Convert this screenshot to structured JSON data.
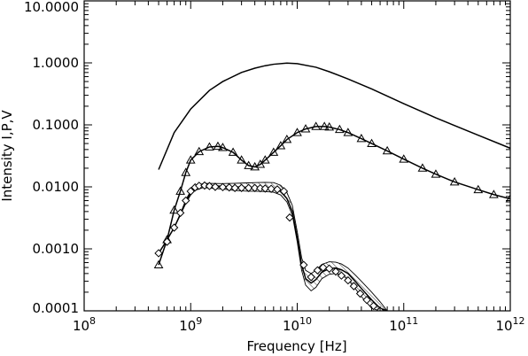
{
  "chart_data": {
    "type": "line",
    "title": "",
    "xlabel": "Frequency [Hz]",
    "ylabel": "Intensity I,P,V",
    "x_scale": "log",
    "y_scale": "log",
    "xlim": [
      100000000.0,
      1000000000000.0
    ],
    "ylim": [
      0.0001,
      10
    ],
    "grid": false,
    "x_ticks": [
      {
        "value": 100000000.0,
        "base": "10",
        "exp": "8"
      },
      {
        "value": 1000000000.0,
        "base": "10",
        "exp": "9"
      },
      {
        "value": 10000000000.0,
        "base": "10",
        "exp": "10"
      },
      {
        "value": 100000000000.0,
        "base": "10",
        "exp": "11"
      },
      {
        "value": 1000000000000.0,
        "base": "10",
        "exp": "12"
      }
    ],
    "y_ticks": [
      {
        "value": 0.0001,
        "label": "0.0001"
      },
      {
        "value": 0.001,
        "label": "0.0010"
      },
      {
        "value": 0.01,
        "label": "0.0100"
      },
      {
        "value": 0.1,
        "label": "0.1000"
      },
      {
        "value": 1,
        "label": "1.0000"
      },
      {
        "value": 10,
        "label": "10.0000"
      }
    ],
    "series": [
      {
        "style": "solid-line",
        "x": [
          500000000.0,
          700000000.0,
          1000000000.0,
          1500000000.0,
          2000000000.0,
          3000000000.0,
          4000000000.0,
          5000000000.0,
          6000000000.0,
          8000000000.0,
          10000000000.0,
          15000000000.0,
          20000000000.0,
          30000000000.0,
          50000000000.0,
          100000000000.0,
          200000000000.0,
          500000000000.0,
          1000000000000.0
        ],
        "values": [
          0.019,
          0.075,
          0.18,
          0.36,
          0.5,
          0.7,
          0.82,
          0.9,
          0.95,
          0.99,
          0.97,
          0.85,
          0.72,
          0.55,
          0.38,
          0.22,
          0.13,
          0.068,
          0.042
        ]
      },
      {
        "style": "solid-line-with-triangles",
        "x": [
          500000000.0,
          600000000.0,
          700000000.0,
          800000000.0,
          900000000.0,
          1000000000.0,
          1200000000.0,
          1500000000.0,
          1800000000.0,
          2000000000.0,
          2500000000.0,
          3000000000.0,
          3500000000.0,
          4000000000.0,
          4500000000.0,
          5000000000.0,
          6000000000.0,
          7000000000.0,
          8000000000.0,
          10000000000.0,
          12000000000.0,
          15000000000.0,
          18000000000.0,
          20000000000.0,
          25000000000.0,
          30000000000.0,
          40000000000.0,
          50000000000.0,
          70000000000.0,
          100000000000.0,
          150000000000.0,
          200000000000.0,
          300000000000.0,
          500000000000.0,
          700000000000.0,
          1000000000000.0
        ],
        "values": [
          0.00055,
          0.0014,
          0.0042,
          0.0085,
          0.017,
          0.027,
          0.037,
          0.044,
          0.045,
          0.043,
          0.036,
          0.027,
          0.022,
          0.021,
          0.023,
          0.027,
          0.036,
          0.046,
          0.058,
          0.075,
          0.086,
          0.094,
          0.094,
          0.092,
          0.084,
          0.075,
          0.06,
          0.05,
          0.038,
          0.028,
          0.02,
          0.016,
          0.012,
          0.009,
          0.0075,
          0.0064
        ]
      },
      {
        "style": "hatched-band-with-diamonds",
        "x": [
          500000000.0,
          550000000.0,
          600000000.0,
          700000000.0,
          800000000.0,
          900000000.0,
          1000000000.0,
          1100000000.0,
          1300000000.0,
          1500000000.0,
          2000000000.0,
          2500000000.0,
          3000000000.0,
          3500000000.0,
          4000000000.0,
          5000000000.0,
          6000000000.0,
          7000000000.0,
          8000000000.0,
          9000000000.0,
          10000000000.0,
          11000000000.0,
          12000000000.0,
          13500000000.0,
          15000000000.0,
          17000000000.0,
          20000000000.0,
          23000000000.0,
          26000000000.0,
          30000000000.0,
          35000000000.0,
          40000000000.0,
          50000000000.0,
          60000000000.0,
          70000000000.0
        ],
        "values": [
          0.00085,
          0.0011,
          0.0014,
          0.0022,
          0.0036,
          0.0058,
          0.008,
          0.0095,
          0.0105,
          0.0105,
          0.0102,
          0.01,
          0.0099,
          0.0098,
          0.0098,
          0.0097,
          0.0095,
          0.0085,
          0.0065,
          0.004,
          0.0015,
          0.00055,
          0.00033,
          0.00028,
          0.00032,
          0.00042,
          0.00048,
          0.00049,
          0.00046,
          0.0004,
          0.0003,
          0.00023,
          0.00015,
          0.00011,
          0.0001
        ],
        "lower": [
          0.00085,
          0.0011,
          0.0014,
          0.0022,
          0.0035,
          0.0054,
          0.0074,
          0.0088,
          0.0097,
          0.0096,
          0.0092,
          0.0088,
          0.0086,
          0.0085,
          0.0085,
          0.0084,
          0.0082,
          0.0074,
          0.0057,
          0.0035,
          0.0013,
          0.00045,
          0.00026,
          0.00021,
          0.00024,
          0.00033,
          0.00039,
          0.0004,
          0.00038,
          0.00032,
          0.00023,
          0.00017,
          0.00011,
          0.0001,
          0.0001
        ],
        "upper": [
          0.00085,
          0.0011,
          0.0014,
          0.0022,
          0.0037,
          0.0062,
          0.0086,
          0.0102,
          0.0113,
          0.0114,
          0.0113,
          0.0114,
          0.0115,
          0.0116,
          0.0117,
          0.0118,
          0.0117,
          0.0106,
          0.0081,
          0.005,
          0.0019,
          0.00072,
          0.00045,
          0.0004,
          0.00045,
          0.00056,
          0.00062,
          0.00061,
          0.00057,
          0.00049,
          0.00038,
          0.0003,
          0.0002,
          0.00014,
          0.0001
        ],
        "marker_x": [
          500000000.0,
          600000000.0,
          700000000.0,
          800000000.0,
          900000000.0,
          1000000000.0,
          1100000000.0,
          1200000000.0,
          1350000000.0,
          1500000000.0,
          1700000000.0,
          2000000000.0,
          2300000000.0,
          2600000000.0,
          3000000000.0,
          3500000000.0,
          4000000000.0,
          4500000000.0,
          5000000000.0,
          5700000000.0,
          6500000000.0,
          7500000000.0,
          8500000000.0,
          11500000000.0,
          13500000000.0,
          15500000000.0,
          17500000000.0,
          20000000000.0,
          23000000000.0,
          26000000000.0,
          30000000000.0,
          34000000000.0,
          39000000000.0,
          45000000000.0,
          52000000000.0,
          60000000000.0
        ],
        "marker_y": [
          0.00085,
          0.0013,
          0.0022,
          0.0038,
          0.006,
          0.0085,
          0.0098,
          0.0104,
          0.0105,
          0.0103,
          0.01,
          0.0099,
          0.0098,
          0.0096,
          0.0096,
          0.0096,
          0.0096,
          0.0095,
          0.0094,
          0.0093,
          0.0091,
          0.0085,
          0.0032,
          0.00055,
          0.00035,
          0.00045,
          0.0005,
          0.00048,
          0.00043,
          0.00037,
          0.00031,
          0.00025,
          0.00019,
          0.00015,
          0.00012,
          0.0001
        ]
      }
    ]
  }
}
